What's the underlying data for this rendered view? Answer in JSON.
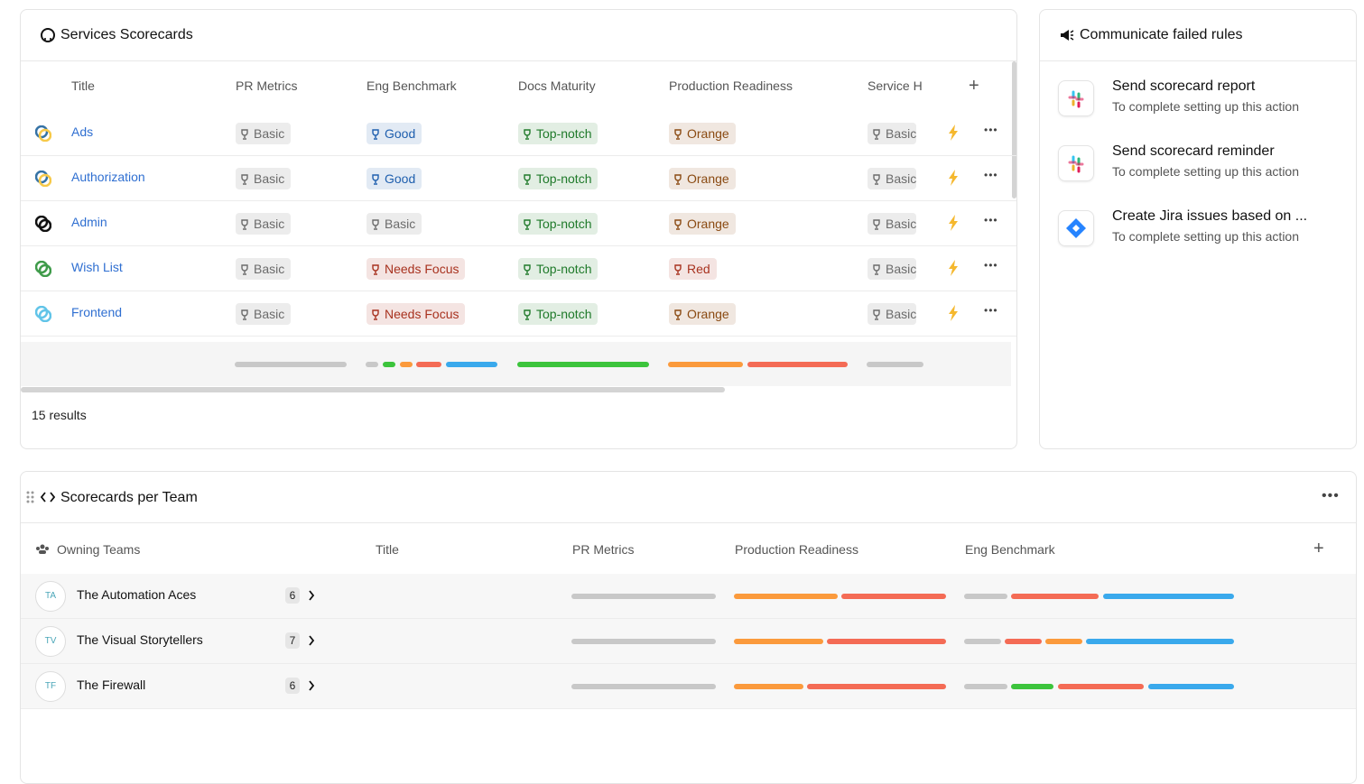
{
  "services_card": {
    "title": "Services Scorecards",
    "columns": [
      "Title",
      "PR Metrics",
      "Eng Benchmark",
      "Docs Maturity",
      "Production Readiness",
      "Service H"
    ],
    "rows": [
      {
        "title": "Ads",
        "cells": [
          {
            "label": "Basic",
            "color": "#6b6b6b"
          },
          {
            "label": "Good",
            "color": "#1f5fae"
          },
          {
            "label": "Top-notch",
            "color": "#1f7a2a"
          },
          {
            "label": "Orange",
            "color": "#8a4a12"
          },
          {
            "label": "Basic",
            "color": "#6b6b6b"
          }
        ]
      },
      {
        "title": "Authorization",
        "cells": [
          {
            "label": "Basic",
            "color": "#6b6b6b"
          },
          {
            "label": "Good",
            "color": "#1f5fae"
          },
          {
            "label": "Top-notch",
            "color": "#1f7a2a"
          },
          {
            "label": "Orange",
            "color": "#8a4a12"
          },
          {
            "label": "Basic",
            "color": "#6b6b6b"
          }
        ]
      },
      {
        "title": "Admin",
        "cells": [
          {
            "label": "Basic",
            "color": "#6b6b6b"
          },
          {
            "label": "Basic",
            "color": "#6b6b6b"
          },
          {
            "label": "Top-notch",
            "color": "#1f7a2a"
          },
          {
            "label": "Orange",
            "color": "#8a4a12"
          },
          {
            "label": "Basic",
            "color": "#6b6b6b"
          }
        ]
      },
      {
        "title": "Wish List",
        "cells": [
          {
            "label": "Basic",
            "color": "#6b6b6b"
          },
          {
            "label": "Needs Focus",
            "color": "#a8321f"
          },
          {
            "label": "Top-notch",
            "color": "#1f7a2a"
          },
          {
            "label": "Red",
            "color": "#a8321f"
          },
          {
            "label": "Basic",
            "color": "#6b6b6b"
          }
        ]
      },
      {
        "title": "Frontend",
        "cells": [
          {
            "label": "Basic",
            "color": "#6b6b6b"
          },
          {
            "label": "Needs Focus",
            "color": "#a8321f"
          },
          {
            "label": "Top-notch",
            "color": "#1f7a2a"
          },
          {
            "label": "Orange",
            "color": "#8a4a12"
          },
          {
            "label": "Basic",
            "color": "#6b6b6b"
          }
        ]
      }
    ],
    "results": "15 results"
  },
  "actions_card": {
    "title": "Communicate failed rules",
    "items": [
      {
        "title": "Send scorecard report",
        "subtitle": "To complete setting up this action"
      },
      {
        "title": "Send scorecard reminder",
        "subtitle": "To complete setting up this action"
      },
      {
        "title": "Create Jira issues based on ...",
        "subtitle": "To complete setting up this action"
      }
    ]
  },
  "teams_card": {
    "title": "Scorecards per Team",
    "columns": [
      "Owning Teams",
      "Title",
      "PR Metrics",
      "Production Readiness",
      "Eng Benchmark"
    ],
    "rows": [
      {
        "initials": "TA",
        "name": "The Automation Aces",
        "count": 6
      },
      {
        "initials": "TV",
        "name": "The Visual Storytellers",
        "count": 7
      },
      {
        "initials": "TF",
        "name": "The Firewall",
        "count": 6
      }
    ]
  }
}
